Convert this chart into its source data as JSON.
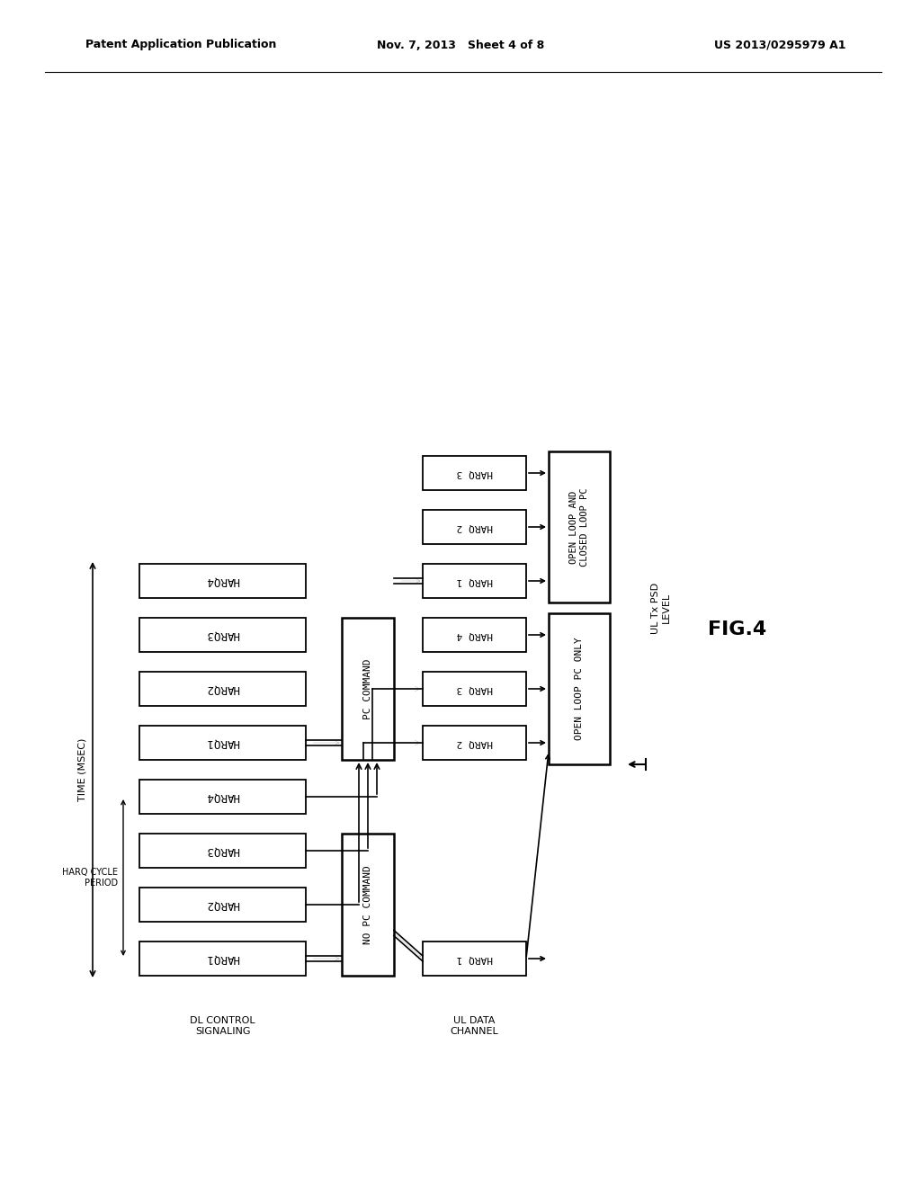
{
  "background": "#ffffff",
  "header_left": "Patent Application Publication",
  "header_mid": "Nov. 7, 2013   Sheet 4 of 8",
  "header_right": "US 2013/0295979 A1",
  "fig_label": "FIG.4",
  "dl_labels": [
    "HARQ1",
    "HARQ2",
    "HARQ3",
    "HARQ4",
    "HARQ1",
    "HARQ2",
    "HARQ3",
    "HARQ4"
  ],
  "no_pc_label": "NO PC COMMAND",
  "pc_label": "PC COMMAND",
  "ul_data_label": "UL DATA\nCHANNEL",
  "ol_only_label": "OPEN LOOP PC ONLY",
  "olcl_label": "OPEN LOOP AND\nCLOSED LOOP PC",
  "ul_psd_label": "UL Tx PSD\nLEVEL",
  "time_label": "TIME (MSEC)",
  "harq_cycle_label": "HARQ CYCLE\nPERIOD",
  "dl_control_label": "DL CONTROL\nSIGNALING"
}
